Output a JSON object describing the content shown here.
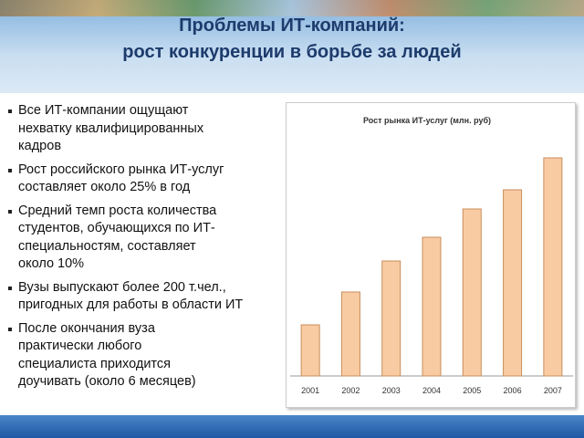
{
  "header": {
    "title": [
      "Проблемы ИТ-компаний:",
      "рост конкуренции в борьбе за людей"
    ]
  },
  "bullets": [
    [
      "Все  ИТ-компании ощущают",
      "нехватку квалифицированных",
      "кадров"
    ],
    [
      "Рост российского рынка ИТ-услуг",
      "составляет около 25% в год"
    ],
    [
      "Средний темп роста количества",
      "студентов, обучающихся по ИТ-",
      "специальностям, составляет",
      "около 10%"
    ],
    [
      "Вузы выпускают более 200 т.чел.,",
      "пригодных для работы в области ИТ"
    ],
    [
      "После окончания вуза",
      "практически любого",
      "специалиста приходится",
      "доучивать (около 6 месяцев)"
    ]
  ],
  "chart_data": {
    "type": "bar",
    "title": "Рост рынка ИТ-услуг (млн. руб)",
    "categories": [
      "2001",
      "2002",
      "2003",
      "2004",
      "2005",
      "2006",
      "2007"
    ],
    "values": [
      56,
      92,
      126,
      152,
      183,
      204,
      239
    ],
    "ylim": [
      0,
      270
    ],
    "color": "#f8cba2"
  }
}
